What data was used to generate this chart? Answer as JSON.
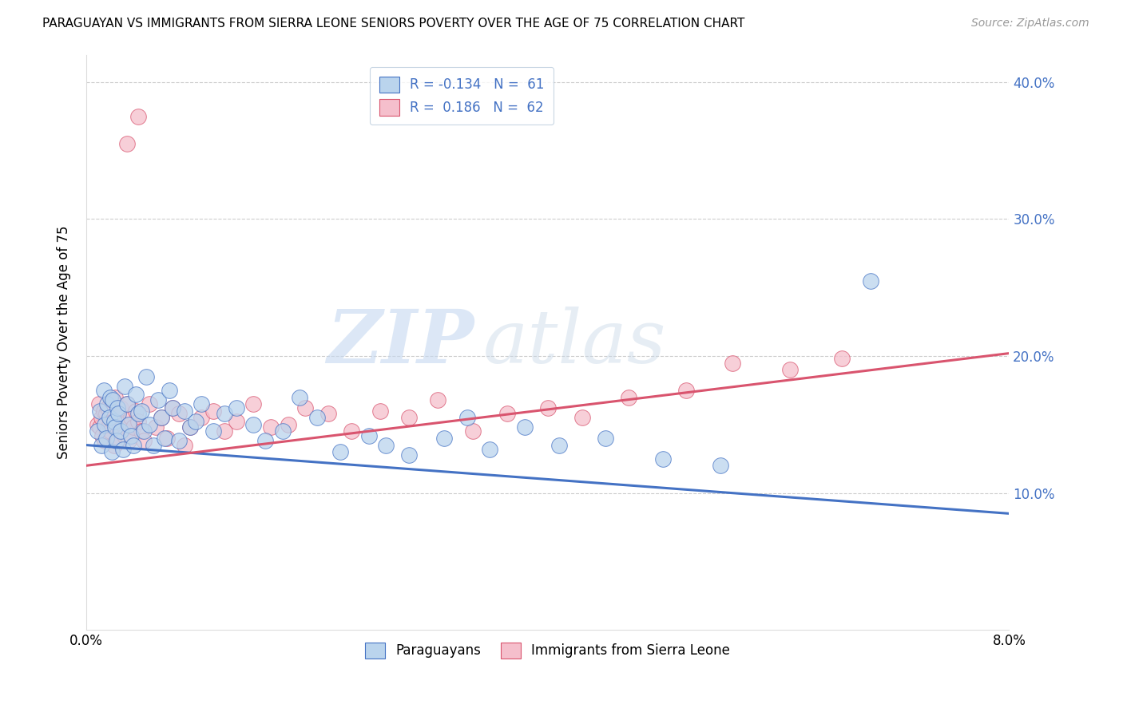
{
  "title": "PARAGUAYAN VS IMMIGRANTS FROM SIERRA LEONE SENIORS POVERTY OVER THE AGE OF 75 CORRELATION CHART",
  "source": "Source: ZipAtlas.com",
  "ylabel": "Seniors Poverty Over the Age of 75",
  "xlim": [
    0.0,
    8.0
  ],
  "ylim": [
    0.0,
    42.0
  ],
  "yticks": [
    10.0,
    20.0,
    30.0,
    40.0
  ],
  "ytick_labels": [
    "10.0%",
    "20.0%",
    "30.0%",
    "40.0%"
  ],
  "color_blue": "#bad4ed",
  "color_pink": "#f5bfcc",
  "line_blue": "#4472c4",
  "line_pink": "#d9546e",
  "watermark_zip": "ZIP",
  "watermark_atlas": "atlas",
  "background_color": "#ffffff",
  "paraguayans_x": [
    0.1,
    0.12,
    0.13,
    0.15,
    0.16,
    0.17,
    0.18,
    0.2,
    0.21,
    0.22,
    0.23,
    0.24,
    0.25,
    0.26,
    0.27,
    0.28,
    0.3,
    0.32,
    0.33,
    0.35,
    0.37,
    0.39,
    0.41,
    0.43,
    0.45,
    0.48,
    0.5,
    0.52,
    0.55,
    0.58,
    0.62,
    0.65,
    0.68,
    0.72,
    0.75,
    0.8,
    0.85,
    0.9,
    0.95,
    1.0,
    1.1,
    1.2,
    1.3,
    1.45,
    1.55,
    1.7,
    1.85,
    2.0,
    2.2,
    2.45,
    2.6,
    2.8,
    3.1,
    3.3,
    3.5,
    3.8,
    4.1,
    4.5,
    5.0,
    5.5,
    6.8
  ],
  "paraguayans_y": [
    14.5,
    16.0,
    13.5,
    17.5,
    15.0,
    14.0,
    16.5,
    15.5,
    17.0,
    13.0,
    16.8,
    15.2,
    14.8,
    13.8,
    16.2,
    15.8,
    14.5,
    13.2,
    17.8,
    16.5,
    15.0,
    14.2,
    13.5,
    17.2,
    15.8,
    16.0,
    14.5,
    18.5,
    15.0,
    13.5,
    16.8,
    15.5,
    14.0,
    17.5,
    16.2,
    13.8,
    16.0,
    14.8,
    15.2,
    16.5,
    14.5,
    15.8,
    16.2,
    15.0,
    13.8,
    14.5,
    17.0,
    15.5,
    13.0,
    14.2,
    13.5,
    12.8,
    14.0,
    15.5,
    13.2,
    14.8,
    13.5,
    14.0,
    12.5,
    12.0,
    25.5
  ],
  "sierraleone_x": [
    0.1,
    0.11,
    0.12,
    0.13,
    0.14,
    0.15,
    0.16,
    0.17,
    0.18,
    0.19,
    0.2,
    0.21,
    0.22,
    0.23,
    0.24,
    0.25,
    0.26,
    0.27,
    0.28,
    0.3,
    0.32,
    0.33,
    0.35,
    0.37,
    0.39,
    0.41,
    0.43,
    0.45,
    0.48,
    0.5,
    0.55,
    0.6,
    0.65,
    0.7,
    0.75,
    0.8,
    0.85,
    0.9,
    1.0,
    1.1,
    1.2,
    1.3,
    1.45,
    1.6,
    1.75,
    1.9,
    2.1,
    2.3,
    2.55,
    2.8,
    3.05,
    3.35,
    3.65,
    4.0,
    4.3,
    4.7,
    5.2,
    5.6,
    6.1,
    6.55,
    0.35,
    0.45
  ],
  "sierraleone_y": [
    15.0,
    16.5,
    14.8,
    15.5,
    14.2,
    16.0,
    13.8,
    15.8,
    14.5,
    16.2,
    15.0,
    14.5,
    16.8,
    15.2,
    13.5,
    17.0,
    14.8,
    15.5,
    13.8,
    16.2,
    15.0,
    14.2,
    16.5,
    13.8,
    15.5,
    14.8,
    16.0,
    15.2,
    14.5,
    13.8,
    16.5,
    14.8,
    15.5,
    14.0,
    16.2,
    15.8,
    13.5,
    14.8,
    15.5,
    16.0,
    14.5,
    15.2,
    16.5,
    14.8,
    15.0,
    16.2,
    15.8,
    14.5,
    16.0,
    15.5,
    16.8,
    14.5,
    15.8,
    16.2,
    15.5,
    17.0,
    17.5,
    19.5,
    19.0,
    19.8,
    35.5,
    37.5
  ],
  "blue_line_x": [
    0.0,
    8.0
  ],
  "blue_line_y": [
    13.5,
    8.5
  ],
  "pink_line_x": [
    0.0,
    8.0
  ],
  "pink_line_y": [
    12.0,
    20.2
  ]
}
